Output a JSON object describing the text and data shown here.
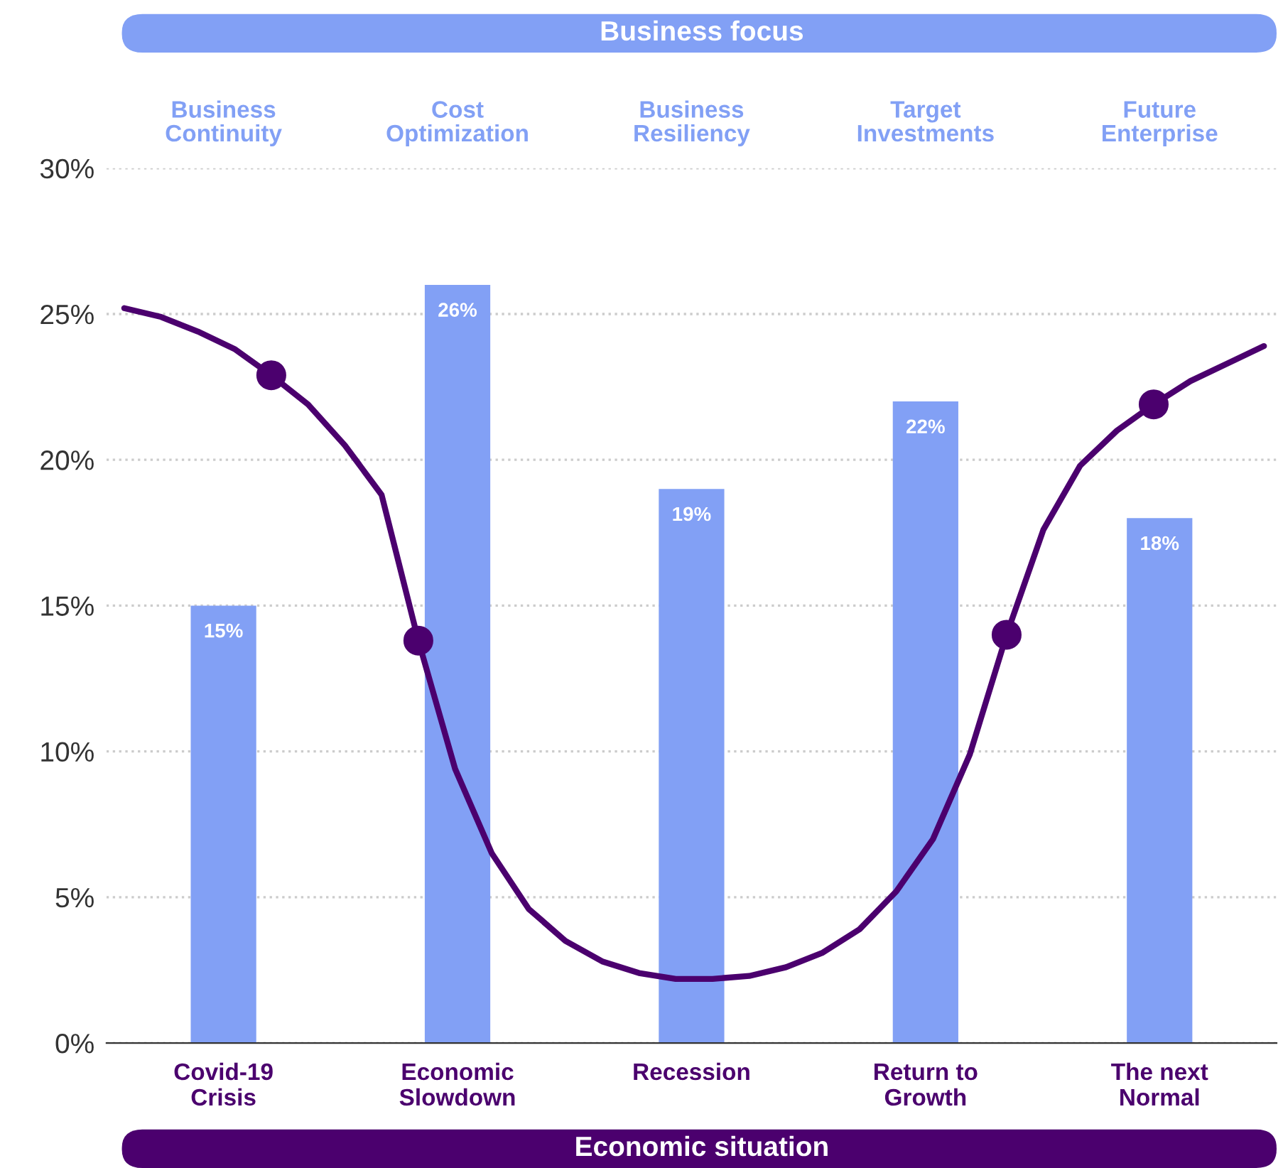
{
  "chart_data": [
    {
      "type": "bar",
      "title": "Business focus",
      "xlabel": "Economic situation",
      "annotations": [
        "Business\nContinuity",
        "Cost\nOptimization",
        "Business\nResiliency",
        "Target\nInvestments",
        "Future\nEnterprise"
      ],
      "categories": [
        "Covid-19\nCrisis",
        "Economic\nSlowdown",
        "Recession",
        "Return to\nGrowth",
        "The next\nNormal"
      ],
      "series": [
        {
          "color": "#82a0f5",
          "values": [
            15,
            26,
            19,
            22,
            18
          ]
        }
      ],
      "value_labels": [
        "15%",
        "26%",
        "19%",
        "22%",
        "18%"
      ],
      "ylim": [
        0,
        30
      ],
      "yticks": [
        {
          "value": 0,
          "label": "0%"
        },
        {
          "value": 5,
          "label": "5%"
        },
        {
          "value": 10,
          "label": "10%"
        },
        {
          "value": 15,
          "label": "15%"
        },
        {
          "value": 20,
          "label": "20%"
        },
        {
          "value": 25,
          "label": "25%"
        },
        {
          "value": 30,
          "label": "30%"
        }
      ],
      "grid": "y",
      "legend": false
    },
    {
      "type": "line",
      "tick_labels": false,
      "ylim": [
        0,
        30
      ],
      "categories": [
        null,
        null,
        null,
        null,
        null,
        null,
        null,
        null,
        null,
        null,
        null,
        null,
        null,
        null,
        null,
        null,
        null,
        null,
        null,
        null,
        null,
        null,
        null,
        null,
        null,
        null,
        null,
        null,
        null,
        null,
        null,
        null
      ],
      "series": [
        {
          "color": "#4b006e",
          "marker": "none",
          "line_style": "solid",
          "values": [
            25.2,
            24.9,
            24.4,
            23.8,
            22.9,
            21.9,
            20.5,
            18.8,
            13.8,
            9.4,
            6.5,
            4.6,
            3.5,
            2.8,
            2.4,
            2.2,
            2.2,
            2.3,
            2.6,
            3.1,
            3.9,
            5.2,
            7.0,
            9.9,
            14.0,
            17.6,
            19.8,
            21.0,
            21.9,
            22.7,
            23.3,
            23.9
          ]
        },
        {
          "type": "scatter",
          "color": "#4b006e",
          "marker": "circle",
          "values": [
            null,
            null,
            null,
            null,
            22.9,
            null,
            null,
            null,
            13.8,
            null,
            null,
            null,
            null,
            null,
            null,
            null,
            null,
            null,
            null,
            null,
            null,
            null,
            null,
            null,
            14.0,
            null,
            null,
            null,
            21.9,
            null,
            null,
            null
          ]
        }
      ]
    }
  ]
}
